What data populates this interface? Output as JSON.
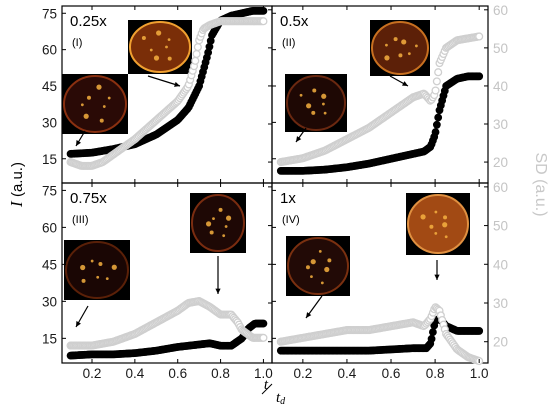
{
  "chart_data": {
    "type": "scatter",
    "left_axis_label": {
      "var": "I",
      "unit": "(a.u.)"
    },
    "right_axis_label": "SD (a.u.)",
    "x_axis_label": {
      "num": "t",
      "den": "t_d"
    },
    "x_ticks": [
      "0.2",
      "0.4",
      "0.6",
      "0.8",
      "1.0"
    ],
    "left_ticks": [
      "15",
      "30",
      "45",
      "60",
      "75"
    ],
    "right_ticks": [
      "20",
      "30",
      "40",
      "50",
      "60"
    ],
    "xlim": [
      0.06,
      1.04
    ],
    "ylim_left": [
      5,
      78
    ],
    "ylim_right": [
      14.5,
      61
    ],
    "grid": false,
    "colors": {
      "intensity": "#000000",
      "sd": "#cfcfcf",
      "right_axis": "#c4c4c4"
    },
    "panels": [
      {
        "label": "0.25x",
        "roman": "(I)",
        "series": [
          {
            "color": "intensity",
            "points": [
              [
                0.1,
                17
              ],
              [
                0.2,
                17.5
              ],
              [
                0.3,
                19
              ],
              [
                0.4,
                21
              ],
              [
                0.5,
                25
              ],
              [
                0.6,
                31
              ],
              [
                0.65,
                36
              ],
              [
                0.7,
                45
              ],
              [
                0.74,
                58
              ],
              [
                0.76,
                66
              ],
              [
                0.8,
                72
              ],
              [
                0.85,
                74
              ],
              [
                0.9,
                75
              ],
              [
                0.95,
                76
              ],
              [
                1.0,
                76
              ]
            ]
          },
          {
            "color": "sd",
            "points": [
              [
                0.1,
                20
              ],
              [
                0.15,
                19
              ],
              [
                0.2,
                19
              ],
              [
                0.25,
                20
              ],
              [
                0.3,
                22
              ],
              [
                0.4,
                26
              ],
              [
                0.5,
                31
              ],
              [
                0.6,
                36
              ],
              [
                0.65,
                40
              ],
              [
                0.68,
                46
              ],
              [
                0.7,
                52
              ],
              [
                0.72,
                55
              ],
              [
                0.75,
                56
              ],
              [
                0.8,
                57
              ],
              [
                0.9,
                57
              ],
              [
                1.0,
                57
              ]
            ]
          }
        ]
      },
      {
        "label": "0.5x",
        "roman": "(II)",
        "series": [
          {
            "color": "intensity",
            "points": [
              [
                0.1,
                10
              ],
              [
                0.2,
                10
              ],
              [
                0.3,
                10.5
              ],
              [
                0.4,
                11.5
              ],
              [
                0.5,
                13
              ],
              [
                0.6,
                15
              ],
              [
                0.7,
                17
              ],
              [
                0.75,
                18
              ],
              [
                0.78,
                20
              ],
              [
                0.8,
                25
              ],
              [
                0.82,
                35
              ],
              [
                0.85,
                45
              ],
              [
                0.9,
                48
              ],
              [
                0.95,
                49
              ],
              [
                1.0,
                49
              ]
            ]
          },
          {
            "color": "sd",
            "points": [
              [
                0.1,
                20
              ],
              [
                0.2,
                21
              ],
              [
                0.3,
                23
              ],
              [
                0.4,
                26
              ],
              [
                0.5,
                29
              ],
              [
                0.6,
                33
              ],
              [
                0.7,
                37
              ],
              [
                0.75,
                38
              ],
              [
                0.78,
                36
              ],
              [
                0.8,
                38
              ],
              [
                0.82,
                46
              ],
              [
                0.85,
                50
              ],
              [
                0.9,
                52
              ],
              [
                0.95,
                52.5
              ],
              [
                1.0,
                53
              ]
            ]
          }
        ]
      },
      {
        "label": "0.75x",
        "roman": "(III)",
        "series": [
          {
            "color": "intensity",
            "points": [
              [
                0.1,
                8
              ],
              [
                0.2,
                8.5
              ],
              [
                0.3,
                8.5
              ],
              [
                0.4,
                9
              ],
              [
                0.5,
                10
              ],
              [
                0.6,
                11.5
              ],
              [
                0.7,
                12.5
              ],
              [
                0.75,
                13
              ],
              [
                0.8,
                12
              ],
              [
                0.85,
                12
              ],
              [
                0.9,
                15
              ],
              [
                0.93,
                19
              ],
              [
                0.96,
                21
              ],
              [
                1.0,
                21
              ]
            ]
          },
          {
            "color": "sd",
            "points": [
              [
                0.1,
                19
              ],
              [
                0.2,
                19
              ],
              [
                0.3,
                20
              ],
              [
                0.4,
                22
              ],
              [
                0.5,
                25
              ],
              [
                0.6,
                28
              ],
              [
                0.65,
                30
              ],
              [
                0.7,
                30.5
              ],
              [
                0.75,
                29
              ],
              [
                0.8,
                27
              ],
              [
                0.85,
                27
              ],
              [
                0.88,
                25
              ],
              [
                0.9,
                23
              ],
              [
                0.95,
                21
              ],
              [
                1.0,
                21
              ]
            ]
          }
        ]
      },
      {
        "label": "1x",
        "roman": "(IV)",
        "series": [
          {
            "color": "intensity",
            "points": [
              [
                0.1,
                10
              ],
              [
                0.2,
                10
              ],
              [
                0.3,
                10
              ],
              [
                0.4,
                10
              ],
              [
                0.5,
                10
              ],
              [
                0.6,
                10.5
              ],
              [
                0.7,
                11
              ],
              [
                0.76,
                11
              ],
              [
                0.78,
                13
              ],
              [
                0.8,
                22
              ],
              [
                0.82,
                23
              ],
              [
                0.85,
                20
              ],
              [
                0.9,
                18
              ],
              [
                1.0,
                18
              ]
            ]
          },
          {
            "color": "sd",
            "points": [
              [
                0.1,
                20
              ],
              [
                0.2,
                21
              ],
              [
                0.3,
                22
              ],
              [
                0.4,
                23
              ],
              [
                0.5,
                23
              ],
              [
                0.6,
                24
              ],
              [
                0.7,
                25
              ],
              [
                0.75,
                24
              ],
              [
                0.78,
                26
              ],
              [
                0.8,
                29
              ],
              [
                0.82,
                28
              ],
              [
                0.85,
                22
              ],
              [
                0.9,
                18
              ],
              [
                0.95,
                16
              ],
              [
                1.0,
                15
              ]
            ]
          }
        ]
      }
    ]
  }
}
